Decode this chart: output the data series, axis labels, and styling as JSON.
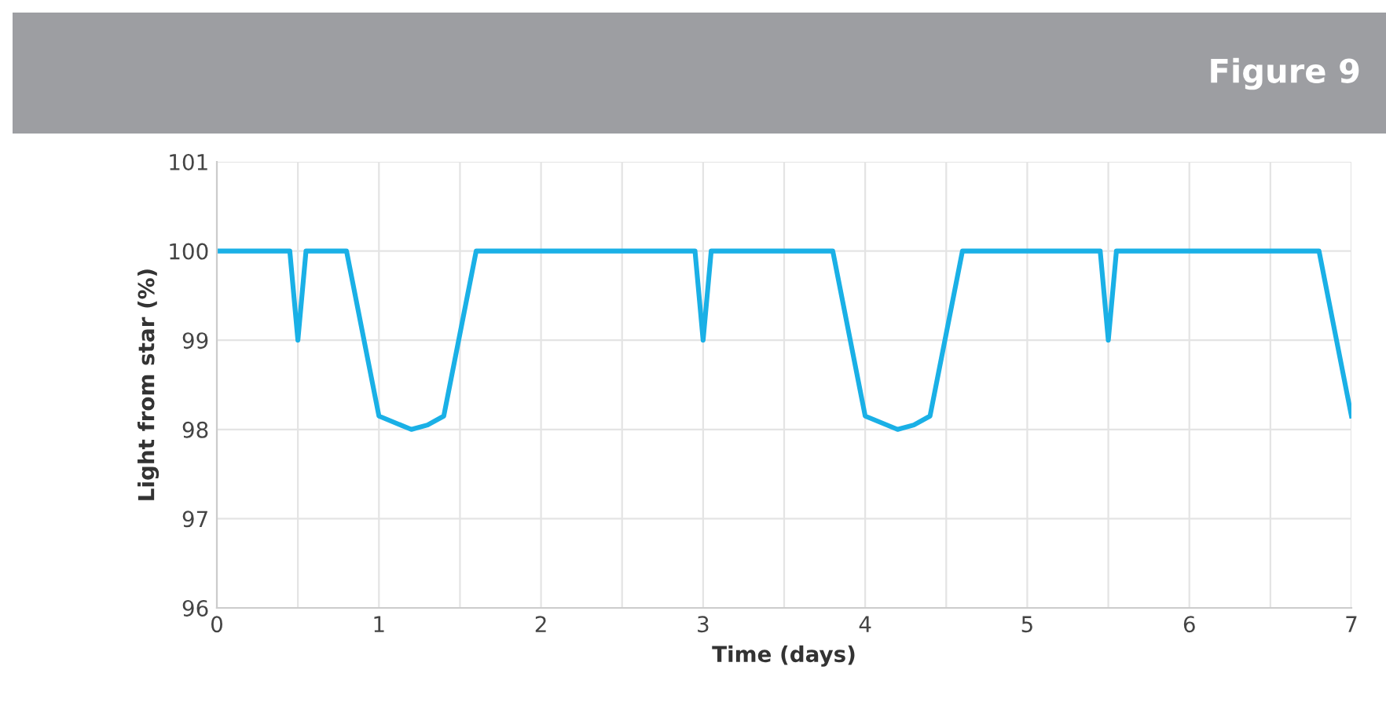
{
  "chart_data": {
    "type": "line",
    "title": "Figure 9",
    "xlabel": "Time (days)",
    "ylabel": "Light from star (%)",
    "x": [
      0,
      0.45,
      0.5,
      0.55,
      0.8,
      1.0,
      1.2,
      1.3,
      1.4,
      1.6,
      2.95,
      3.0,
      3.05,
      3.8,
      4.0,
      4.2,
      4.3,
      4.4,
      4.6,
      5.45,
      5.5,
      5.55,
      6.8,
      7.0
    ],
    "series": [
      {
        "color": "#1ab0e6",
        "values": [
          100,
          100,
          99,
          100,
          100,
          98.15,
          98,
          98.05,
          98.15,
          100,
          100,
          99,
          100,
          100,
          98.15,
          98,
          98.05,
          98.15,
          100,
          100,
          99,
          100,
          100,
          98.15
        ]
      }
    ],
    "xlim": [
      0,
      7
    ],
    "ylim": [
      96,
      101
    ],
    "xticks": [
      0,
      {
        "value": 0.5,
        "label": null
      },
      1,
      {
        "value": 1.5,
        "label": null
      },
      2,
      {
        "value": 2.5,
        "label": null
      },
      3,
      {
        "value": 3.5,
        "label": null
      },
      4,
      {
        "value": 4.5,
        "label": null
      },
      5,
      {
        "value": 5.5,
        "label": null
      },
      6,
      {
        "value": 6.5,
        "label": null
      },
      7
    ],
    "yticks": [
      96,
      97,
      98,
      99,
      100,
      101
    ],
    "grid": true,
    "marker": "none",
    "line_style": "solid"
  }
}
